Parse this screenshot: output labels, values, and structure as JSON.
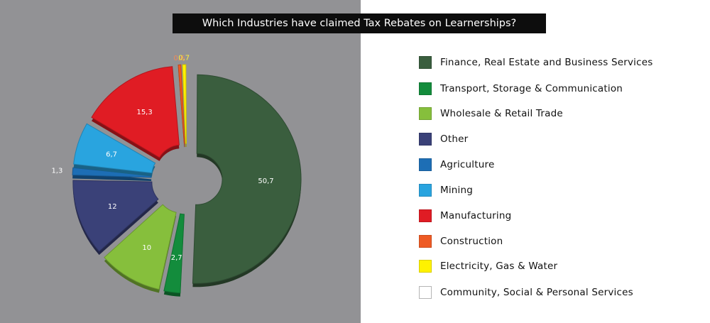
{
  "chart_data": {
    "type": "pie",
    "title": "Which Industries have claimed Tax Rebates on Learnerships?",
    "legend_position": "right",
    "slices": [
      {
        "name": "Finance, Real Estate and Business Services",
        "value": 50.7,
        "label": "50,7",
        "color": "#3a5e3e"
      },
      {
        "name": "Transport, Storage & Communication",
        "value": 2.7,
        "label": "2,7",
        "color": "#138c3c"
      },
      {
        "name": "Wholesale & Retail Trade",
        "value": 10,
        "label": "10",
        "color": "#86bf3c"
      },
      {
        "name": "Other",
        "value": 12,
        "label": "12",
        "color": "#3a4178"
      },
      {
        "name": "Agriculture",
        "value": 1.3,
        "label": "1,3",
        "color": "#1d6eb5"
      },
      {
        "name": "Mining",
        "value": 6.7,
        "label": "6,7",
        "color": "#29a4df"
      },
      {
        "name": "Manufacturing",
        "value": 15.3,
        "label": "15,3",
        "color": "#e01c24"
      },
      {
        "name": "Construction",
        "value": 0.6,
        "label": "0,6",
        "color": "#ee5a24"
      },
      {
        "name": "Electricity, Gas & Water",
        "value": 0.7,
        "label": "0,7",
        "color": "#fff200"
      },
      {
        "name": "Community, Social & Personal Services",
        "value": 0,
        "label": "",
        "color": "#ffffff"
      }
    ]
  }
}
